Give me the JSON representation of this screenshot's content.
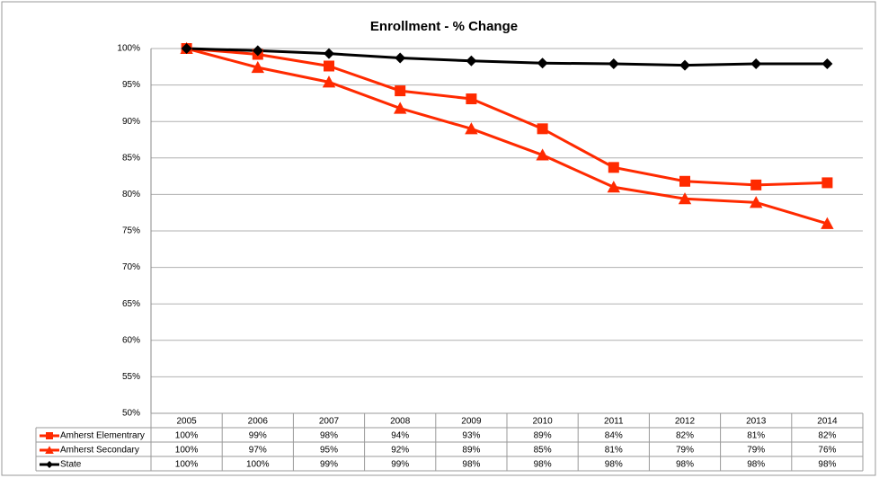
{
  "chart_data": {
    "type": "line",
    "title": "Enrollment - % Change",
    "categories": [
      "2005",
      "2006",
      "2007",
      "2008",
      "2009",
      "2010",
      "2011",
      "2012",
      "2013",
      "2014"
    ],
    "series": [
      {
        "name": "Amherst Elementrary",
        "color": "#ff2a00",
        "marker": "square",
        "values": [
          100,
          99.2,
          97.6,
          94.2,
          93.1,
          89,
          83.7,
          81.8,
          81.3,
          81.6
        ],
        "value_labels": [
          "100%",
          "99%",
          "98%",
          "94%",
          "93%",
          "89%",
          "84%",
          "82%",
          "81%",
          "82%"
        ]
      },
      {
        "name": "Amherst Secondary",
        "color": "#ff2a00",
        "marker": "triangle",
        "values": [
          100,
          97.4,
          95.4,
          91.8,
          89,
          85.4,
          81,
          79.4,
          78.9,
          76
        ],
        "value_labels": [
          "100%",
          "97%",
          "95%",
          "92%",
          "89%",
          "85%",
          "81%",
          "79%",
          "79%",
          "76%"
        ]
      },
      {
        "name": "State",
        "color": "#000000",
        "marker": "diamond",
        "values": [
          100,
          99.7,
          99.3,
          98.7,
          98.3,
          98.0,
          97.9,
          97.7,
          97.9,
          97.9
        ],
        "value_labels": [
          "100%",
          "100%",
          "99%",
          "99%",
          "98%",
          "98%",
          "98%",
          "98%",
          "98%",
          "98%"
        ]
      }
    ],
    "ylim": [
      50,
      100
    ],
    "yticks": [
      {
        "value": 50,
        "label": "50%"
      },
      {
        "value": 55,
        "label": "55%"
      },
      {
        "value": 60,
        "label": "60%"
      },
      {
        "value": 65,
        "label": "65%"
      },
      {
        "value": 70,
        "label": "70%"
      },
      {
        "value": 75,
        "label": "75%"
      },
      {
        "value": 80,
        "label": "80%"
      },
      {
        "value": 85,
        "label": "85%"
      },
      {
        "value": 90,
        "label": "90%"
      },
      {
        "value": 95,
        "label": "95%"
      },
      {
        "value": 100,
        "label": "100%"
      }
    ],
    "grid": true
  }
}
